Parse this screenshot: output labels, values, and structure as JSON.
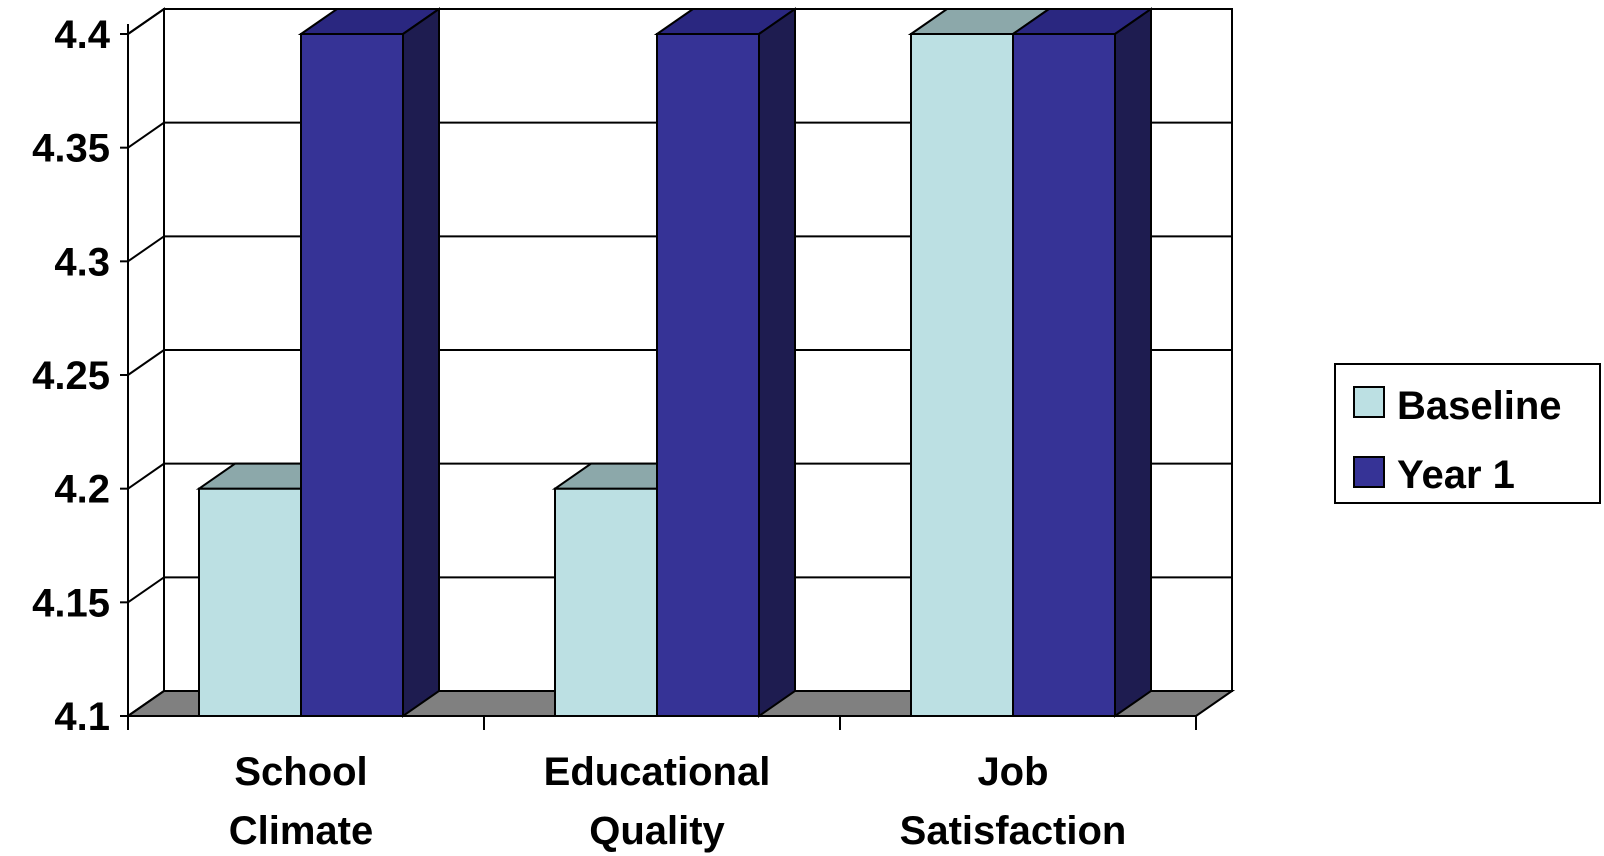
{
  "chart_data": {
    "type": "bar",
    "categories": [
      [
        "School",
        "Climate"
      ],
      [
        "Educational",
        "Quality"
      ],
      [
        "Job",
        "Satisfaction"
      ]
    ],
    "series": [
      {
        "name": "Baseline",
        "values": [
          4.2,
          4.2,
          4.4
        ]
      },
      {
        "name": "Year 1",
        "values": [
          4.4,
          4.4,
          4.4
        ]
      }
    ],
    "y_ticks": [
      "4.1",
      "4.15",
      "4.2",
      "4.25",
      "4.3",
      "4.35",
      "4.4"
    ],
    "ylim": [
      4.1,
      4.4
    ],
    "three_d": true,
    "grid": true,
    "legend": "right",
    "colors": {
      "baseline_front": "#BCE0E3",
      "baseline_top": "#8CA8AA",
      "year1_front": "#363396",
      "year1_top": "#2A2780",
      "year1_side": "#1E1C50",
      "floor": "#808080",
      "grid": "#000000"
    }
  }
}
